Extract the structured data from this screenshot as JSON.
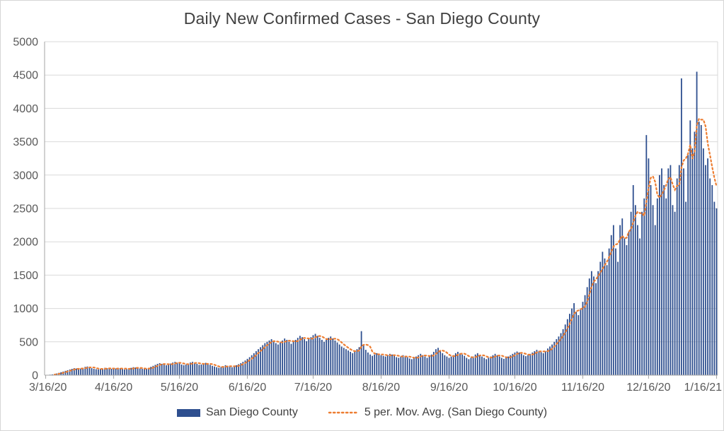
{
  "title": "Daily New Confirmed Cases - San Diego County",
  "legend": {
    "series1_label": "San Diego County",
    "series2_label": "5 per. Mov. Avg. (San Diego County)"
  },
  "colors": {
    "bar": "#2e4f8f",
    "moving_avg": "#ed7d31",
    "grid": "#d9d9d9",
    "axis": "#a6a6a6",
    "title_text": "#404040",
    "tick_label": "#595959"
  },
  "chart_data": {
    "type": "bar",
    "title": "Daily New Confirmed Cases - San Diego County",
    "xlabel": "",
    "ylabel": "",
    "ylim": [
      0,
      5000
    ],
    "y_tick_step": 500,
    "y_tick_labels": [
      "0",
      "500",
      "1000",
      "1500",
      "2000",
      "2500",
      "3000",
      "3500",
      "4000",
      "4500",
      "5000"
    ],
    "x_tick_labels": [
      "3/16/20",
      "4/16/20",
      "5/16/20",
      "6/16/20",
      "7/16/20",
      "8/16/20",
      "9/16/20",
      "10/16/20",
      "11/16/20",
      "12/16/20",
      "1/16/21"
    ],
    "x_tick_indices": [
      0,
      31,
      61,
      92,
      122,
      153,
      184,
      214,
      245,
      275,
      306
    ],
    "grid": true,
    "legend_position": "bottom",
    "series": [
      {
        "name": "San Diego County",
        "type": "bar",
        "values": [
          2,
          5,
          8,
          12,
          18,
          25,
          35,
          45,
          55,
          65,
          75,
          85,
          95,
          105,
          100,
          90,
          100,
          110,
          125,
          130,
          120,
          105,
          95,
          90,
          85,
          95,
          100,
          110,
          105,
          100,
          95,
          90,
          100,
          110,
          105,
          95,
          85,
          90,
          100,
          110,
          120,
          115,
          105,
          100,
          95,
          90,
          95,
          110,
          125,
          140,
          155,
          170,
          180,
          170,
          160,
          150,
          160,
          175,
          190,
          200,
          190,
          175,
          160,
          150,
          160,
          175,
          190,
          200,
          185,
          170,
          155,
          160,
          175,
          185,
          170,
          155,
          140,
          130,
          120,
          110,
          120,
          135,
          150,
          140,
          130,
          120,
          135,
          150,
          165,
          180,
          200,
          220,
          245,
          270,
          300,
          330,
          360,
          390,
          420,
          450,
          480,
          500,
          520,
          540,
          510,
          480,
          460,
          490,
          520,
          550,
          530,
          500,
          470,
          500,
          530,
          560,
          590,
          570,
          540,
          510,
          540,
          570,
          600,
          620,
          590,
          560,
          530,
          500,
          530,
          560,
          580,
          550,
          520,
          490,
          460,
          430,
          410,
          390,
          370,
          350,
          330,
          360,
          390,
          420,
          660,
          450,
          380,
          340,
          310,
          290,
          310,
          330,
          320,
          300,
          290,
          280,
          300,
          320,
          310,
          290,
          270,
          260,
          280,
          300,
          290,
          270,
          250,
          240,
          260,
          280,
          300,
          320,
          300,
          280,
          260,
          280,
          310,
          350,
          390,
          410,
          370,
          330,
          300,
          280,
          260,
          280,
          300,
          330,
          350,
          330,
          310,
          290,
          260,
          240,
          260,
          280,
          310,
          330,
          300,
          280,
          260,
          240,
          260,
          280,
          300,
          320,
          300,
          280,
          260,
          245,
          260,
          280,
          300,
          320,
          340,
          355,
          340,
          320,
          300,
          285,
          300,
          320,
          340,
          360,
          380,
          365,
          345,
          330,
          360,
          400,
          430,
          460,
          500,
          540,
          580,
          630,
          690,
          760,
          840,
          920,
          1000,
          1080,
          950,
          900,
          1000,
          1100,
          1200,
          1320,
          1450,
          1560,
          1480,
          1380,
          1560,
          1700,
          1850,
          1750,
          1650,
          1900,
          2100,
          2250,
          1900,
          1700,
          2250,
          2350,
          2050,
          1950,
          2150,
          2450,
          2850,
          2550,
          2250,
          2050,
          2450,
          2650,
          3600,
          3250,
          2850,
          2550,
          2250,
          2650,
          3000,
          3100,
          2850,
          2650,
          3100,
          3150,
          2550,
          2450,
          2950,
          3150,
          4450,
          3100,
          2600,
          3300,
          3820,
          3400,
          3650,
          4550,
          3800,
          3750,
          3400,
          3150,
          3250,
          2950,
          2850,
          2600,
          2500
        ]
      },
      {
        "name": "5 per. Mov. Avg. (San Diego County)",
        "type": "line",
        "derived": "trailing 5-period moving average of the bar series"
      }
    ]
  }
}
